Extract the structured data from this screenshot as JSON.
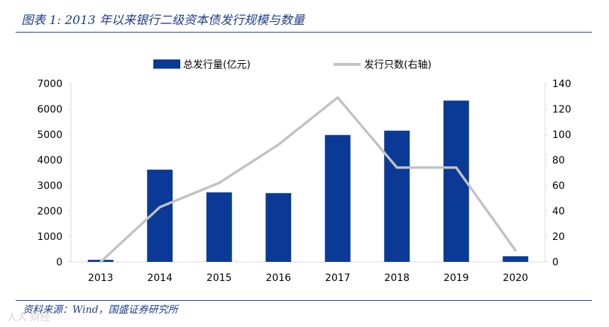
{
  "title": "图表 1:  2013 年以来银行二级资本债发行规模与数量",
  "source": "资料来源：Wind，国盛证券研究所",
  "watermark": "人人 财经",
  "colors": {
    "bar": "#0a3a96",
    "line": "#c2c2c2",
    "axis": "#d9d9d9",
    "title": "#1f3d8a"
  },
  "chart_data": {
    "type": "bar",
    "categories": [
      "2013",
      "2014",
      "2015",
      "2016",
      "2017",
      "2018",
      "2019",
      "2020"
    ],
    "series": [
      {
        "name": "总发行量(亿元)",
        "type": "bar",
        "axis": "left",
        "values": [
          80,
          3620,
          2730,
          2700,
          4980,
          5150,
          6330,
          220
        ]
      },
      {
        "name": "发行只数(右轴)",
        "type": "line",
        "axis": "right",
        "values": [
          0,
          43,
          62,
          92,
          129,
          74,
          74,
          9
        ]
      }
    ],
    "yleft": {
      "min": 0,
      "max": 7000,
      "ticks": [
        "0",
        "1000",
        "2000",
        "3000",
        "4000",
        "5000",
        "6000",
        "7000"
      ]
    },
    "yright": {
      "min": 0,
      "max": 140,
      "ticks": [
        "0",
        "20",
        "40",
        "60",
        "80",
        "100",
        "120",
        "140"
      ]
    },
    "legend": {
      "position": "top",
      "entries": [
        "总发行量(亿元)",
        "发行只数(右轴)"
      ]
    }
  }
}
